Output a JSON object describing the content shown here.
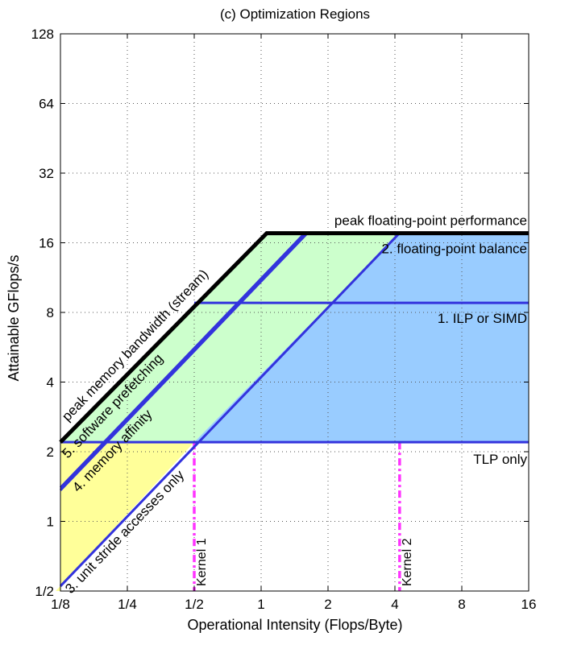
{
  "chart_data": {
    "type": "line",
    "title": "(c) Optimization Regions",
    "xlabel": "Operational Intensity (Flops/Byte)",
    "ylabel": "Attainable GFlops/s",
    "x_scale": "log2",
    "y_scale": "log2",
    "xlim": [
      0.125,
      16
    ],
    "ylim": [
      0.5,
      128
    ],
    "grid": true,
    "x_ticks": [
      {
        "value": 0.125,
        "label": "1/8"
      },
      {
        "value": 0.25,
        "label": "1/4"
      },
      {
        "value": 0.5,
        "label": "1/2"
      },
      {
        "value": 1,
        "label": "1"
      },
      {
        "value": 2,
        "label": "2"
      },
      {
        "value": 4,
        "label": "4"
      },
      {
        "value": 8,
        "label": "8"
      },
      {
        "value": 16,
        "label": "16"
      }
    ],
    "y_ticks": [
      {
        "value": 0.5,
        "label": "1/2"
      },
      {
        "value": 1,
        "label": "1"
      },
      {
        "value": 2,
        "label": "2"
      },
      {
        "value": 4,
        "label": "4"
      },
      {
        "value": 8,
        "label": "8"
      },
      {
        "value": 16,
        "label": "16"
      },
      {
        "value": 32,
        "label": "32"
      },
      {
        "value": 64,
        "label": "64"
      },
      {
        "value": 128,
        "label": "128"
      }
    ],
    "roofline": {
      "color": "#000000",
      "points": [
        [
          0.125,
          2.2
        ],
        [
          1.06,
          17.6
        ],
        [
          16,
          17.6
        ]
      ]
    },
    "ceilings": [
      {
        "label": "peak floating-point performance",
        "kind": "horizontal",
        "y": 17.6,
        "x_start": 1.06,
        "x_end": 16,
        "color": "#000000"
      },
      {
        "label": "peak memory bandwidth (stream)",
        "kind": "diagonal",
        "bandwidth": 17.6,
        "x_start": 0.125,
        "x_end": 1.06,
        "color": "#000000"
      },
      {
        "label": "2. floating-point balance",
        "kind": "horizontal",
        "y": 17.6,
        "x_start": 4.2,
        "x_end": 16,
        "color": "#3333dd"
      },
      {
        "label": "1. ILP or SIMD",
        "kind": "horizontal",
        "y": 8.8,
        "x_start": 0.5,
        "x_end": 16,
        "color": "#3333dd"
      },
      {
        "label": "TLP only",
        "kind": "horizontal",
        "y": 2.2,
        "x_start": 0.125,
        "x_end": 16,
        "color": "#3333dd"
      },
      {
        "label": "5. software prefetching",
        "kind": "diagonal",
        "bandwidth": 11.2,
        "x_start": 0.125,
        "x_end": 1.57,
        "color": "#3333dd"
      },
      {
        "label": "4. memory affinity",
        "kind": "diagonal",
        "bandwidth": 10.9,
        "x_start": 0.125,
        "x_end": 1.6,
        "color": "#3333dd"
      },
      {
        "label": "3. unit stride accesses only",
        "kind": "diagonal",
        "bandwidth": 4.2,
        "x_start": 0.125,
        "x_end": 4.2,
        "color": "#3333dd"
      }
    ],
    "regions": [
      {
        "name": "yellow",
        "color": "#ffff99",
        "polygon": [
          [
            0.125,
            0.5
          ],
          [
            0.125,
            2.2
          ],
          [
            0.5,
            2.2
          ],
          [
            0.119,
            0.5
          ]
        ]
      },
      {
        "name": "green",
        "color": "#ccffcc",
        "polygon": [
          [
            0.125,
            2.2
          ],
          [
            1.06,
            17.6
          ],
          [
            4.2,
            17.6
          ],
          [
            0.5,
            2.2
          ]
        ]
      },
      {
        "name": "blue",
        "color": "#99ccff",
        "polygon": [
          [
            0.5,
            2.2
          ],
          [
            4.2,
            17.6
          ],
          [
            16,
            17.6
          ],
          [
            16,
            2.2
          ]
        ]
      }
    ],
    "kernels": [
      {
        "label": "Kernel 1",
        "x": 0.5,
        "color": "#ff33ff"
      },
      {
        "label": "Kernel 2",
        "x": 4.2,
        "color": "#ff33ff"
      }
    ]
  }
}
